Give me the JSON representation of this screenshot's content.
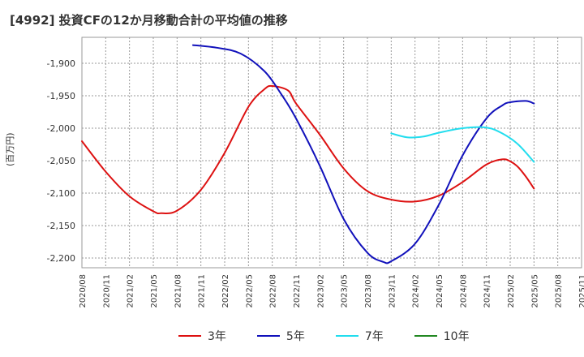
{
  "chart_data": {
    "type": "line",
    "title": "[4992]  投資CFの12か月移動合計の平均値の推移",
    "xlabel": "",
    "ylabel": "(百万円)",
    "ylim": [
      -2215,
      -1860
    ],
    "yticks": [
      -1900,
      -1950,
      -2000,
      -2050,
      -2100,
      -2150,
      -2200
    ],
    "ytick_labels": [
      "-1,900",
      "-1,950",
      "-2,000",
      "-2,050",
      "-2,100",
      "-2,150",
      "-2,200"
    ],
    "x_range": [
      "2020/08",
      "2025/11"
    ],
    "xtick_labels": [
      "2020/08",
      "2020/11",
      "2021/02",
      "2021/05",
      "2021/08",
      "2021/11",
      "2022/02",
      "2022/05",
      "2022/08",
      "2022/11",
      "2023/02",
      "2023/05",
      "2023/08",
      "2023/11",
      "2024/02",
      "2024/05",
      "2024/08",
      "2024/11",
      "2025/02",
      "2025/05",
      "2025/08",
      "2025/11"
    ],
    "grid": true,
    "series": [
      {
        "name": "3年",
        "color": "#dd1111",
        "points": [
          [
            "2020/08",
            -2020
          ],
          [
            "2020/11",
            -2067
          ],
          [
            "2021/02",
            -2105
          ],
          [
            "2021/05",
            -2128
          ],
          [
            "2021/06",
            -2131
          ],
          [
            "2021/08",
            -2127
          ],
          [
            "2021/11",
            -2095
          ],
          [
            "2022/02",
            -2038
          ],
          [
            "2022/05",
            -1967
          ],
          [
            "2022/07",
            -1940
          ],
          [
            "2022/08",
            -1935
          ],
          [
            "2022/10",
            -1942
          ],
          [
            "2022/11",
            -1962
          ],
          [
            "2023/02",
            -2010
          ],
          [
            "2023/05",
            -2062
          ],
          [
            "2023/08",
            -2097
          ],
          [
            "2023/11",
            -2110
          ],
          [
            "2024/02",
            -2113
          ],
          [
            "2024/05",
            -2104
          ],
          [
            "2024/08",
            -2083
          ],
          [
            "2024/11",
            -2056
          ],
          [
            "2025/01",
            -2048
          ],
          [
            "2025/02",
            -2051
          ],
          [
            "2025/03",
            -2060
          ],
          [
            "2025/04",
            -2075
          ],
          [
            "2025/05",
            -2093
          ]
        ]
      },
      {
        "name": "5年",
        "color": "#1111bb",
        "points": [
          [
            "2021/10",
            -1872
          ],
          [
            "2022/01",
            -1876
          ],
          [
            "2022/04",
            -1885
          ],
          [
            "2022/07",
            -1912
          ],
          [
            "2022/09",
            -1945
          ],
          [
            "2022/11",
            -1985
          ],
          [
            "2023/02",
            -2058
          ],
          [
            "2023/05",
            -2140
          ],
          [
            "2023/08",
            -2192
          ],
          [
            "2023/10",
            -2206
          ],
          [
            "2023/11",
            -2205
          ],
          [
            "2024/02",
            -2178
          ],
          [
            "2024/05",
            -2118
          ],
          [
            "2024/08",
            -2042
          ],
          [
            "2024/11",
            -1985
          ],
          [
            "2025/01",
            -1965
          ],
          [
            "2025/02",
            -1960
          ],
          [
            "2025/04",
            -1958
          ],
          [
            "2025/05",
            -1962
          ]
        ]
      },
      {
        "name": "7年",
        "color": "#22ddee",
        "points": [
          [
            "2023/11",
            -2008
          ],
          [
            "2024/01",
            -2014
          ],
          [
            "2024/03",
            -2013
          ],
          [
            "2024/05",
            -2007
          ],
          [
            "2024/08",
            -2000
          ],
          [
            "2024/11",
            -1999
          ],
          [
            "2025/01",
            -2008
          ],
          [
            "2025/03",
            -2025
          ],
          [
            "2025/05",
            -2052
          ]
        ]
      },
      {
        "name": "10年",
        "color": "#228822",
        "points": []
      }
    ]
  }
}
